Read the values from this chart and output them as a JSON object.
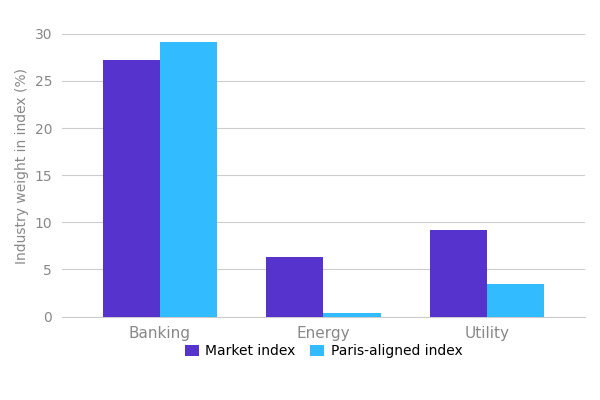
{
  "categories": [
    "Banking",
    "Energy",
    "Utility"
  ],
  "market_index": [
    27.2,
    6.3,
    9.2
  ],
  "paris_aligned_index": [
    29.1,
    0.4,
    3.5
  ],
  "market_color": "#5533cc",
  "paris_color": "#33bbff",
  "ylabel": "Industry weight in index (%)",
  "ylim": [
    0,
    32
  ],
  "yticks": [
    0,
    5,
    10,
    15,
    20,
    25,
    30
  ],
  "legend_labels": [
    "Market index",
    "Paris-aligned index"
  ],
  "bar_width": 0.35,
  "background_color": "#ffffff",
  "grid_color": "#cccccc",
  "tick_color": "#888888",
  "spine_color": "#cccccc"
}
